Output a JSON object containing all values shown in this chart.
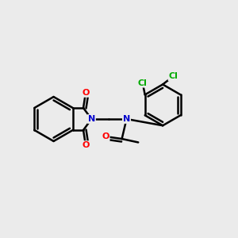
{
  "bg_color": "#ebebeb",
  "bond_color": "#000000",
  "atom_colors": {
    "N": "#0000cc",
    "O": "#ff0000",
    "Cl": "#00aa00",
    "C": "#000000"
  },
  "figsize": [
    3.0,
    3.0
  ],
  "dpi": 100
}
